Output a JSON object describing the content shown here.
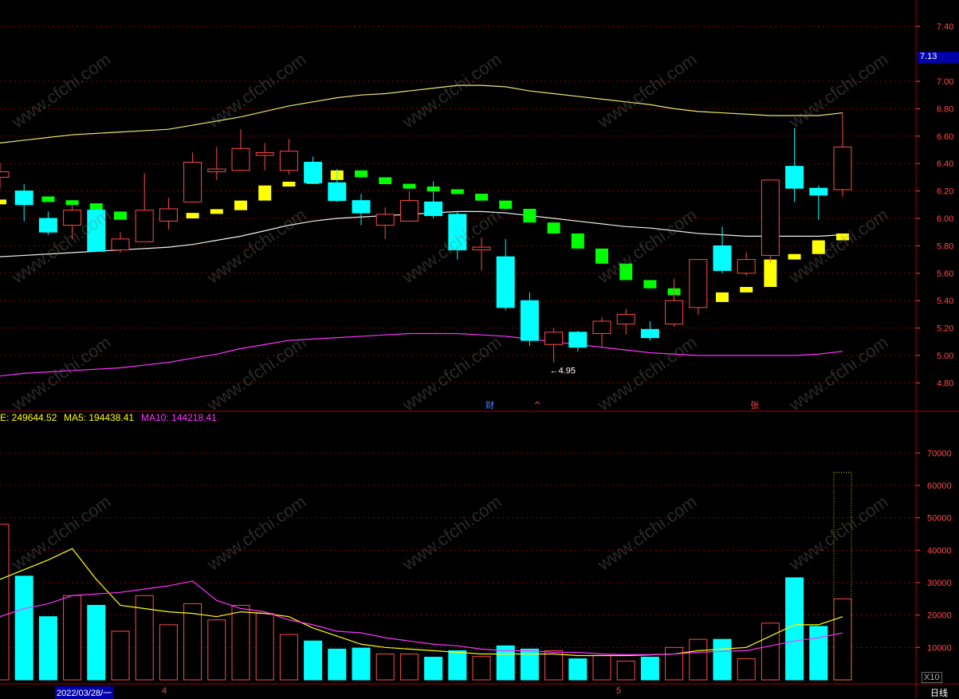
{
  "chart_data": [
    {
      "type": "candlestick",
      "price_axis": {
        "ticks": [
          "4.80",
          "5.00",
          "5.20",
          "5.40",
          "5.60",
          "5.80",
          "6.00",
          "6.20",
          "6.40",
          "6.60",
          "6.80",
          "7.00",
          "7.40"
        ],
        "current_price": "7.13"
      },
      "ylim": [
        4.6,
        7.6
      ],
      "low_marker": "4.95",
      "event_markers": [
        "财",
        "^",
        "张"
      ],
      "candles": [
        {
          "o": 6.3,
          "c": 6.34,
          "h": 6.4,
          "l": 6.22
        },
        {
          "o": 6.2,
          "c": 6.1,
          "h": 6.25,
          "l": 5.98
        },
        {
          "o": 6.0,
          "c": 5.9,
          "h": 6.05,
          "l": 5.88
        },
        {
          "o": 5.95,
          "c": 6.06,
          "h": 6.1,
          "l": 5.85
        },
        {
          "o": 6.06,
          "c": 5.76,
          "h": 6.08,
          "l": 5.76
        },
        {
          "o": 5.77,
          "c": 5.85,
          "h": 5.9,
          "l": 5.75
        },
        {
          "o": 5.83,
          "c": 6.06,
          "h": 6.33,
          "l": 5.83
        },
        {
          "o": 5.98,
          "c": 6.07,
          "h": 6.15,
          "l": 5.92
        },
        {
          "o": 6.12,
          "c": 6.41,
          "h": 6.48,
          "l": 6.12
        },
        {
          "o": 6.34,
          "c": 6.36,
          "h": 6.52,
          "l": 6.28
        },
        {
          "o": 6.35,
          "c": 6.51,
          "h": 6.65,
          "l": 6.35
        },
        {
          "o": 6.46,
          "c": 6.48,
          "h": 6.55,
          "l": 6.35
        },
        {
          "o": 6.35,
          "c": 6.49,
          "h": 6.58,
          "l": 6.32
        },
        {
          "o": 6.41,
          "c": 6.26,
          "h": 6.45,
          "l": 6.25
        },
        {
          "o": 6.26,
          "c": 6.13,
          "h": 6.36,
          "l": 6.12
        },
        {
          "o": 6.13,
          "c": 6.04,
          "h": 6.18,
          "l": 5.95
        },
        {
          "o": 5.95,
          "c": 6.03,
          "h": 6.08,
          "l": 5.85
        },
        {
          "o": 5.98,
          "c": 6.13,
          "h": 6.2,
          "l": 5.98
        },
        {
          "o": 6.12,
          "c": 6.02,
          "h": 6.27,
          "l": 6.0
        },
        {
          "o": 6.03,
          "c": 5.77,
          "h": 6.05,
          "l": 5.7
        },
        {
          "o": 5.77,
          "c": 5.79,
          "h": 5.86,
          "l": 5.62
        },
        {
          "o": 5.72,
          "c": 5.35,
          "h": 5.85,
          "l": 5.33
        },
        {
          "o": 5.4,
          "c": 5.11,
          "h": 5.46,
          "l": 5.07
        },
        {
          "o": 5.08,
          "c": 5.17,
          "h": 5.2,
          "l": 4.95
        },
        {
          "o": 5.17,
          "c": 5.06,
          "h": 5.18,
          "l": 5.03
        },
        {
          "o": 5.16,
          "c": 5.25,
          "h": 5.28,
          "l": 5.06
        },
        {
          "o": 5.23,
          "c": 5.3,
          "h": 5.34,
          "l": 5.15
        },
        {
          "o": 5.19,
          "c": 5.13,
          "h": 5.25,
          "l": 5.11
        },
        {
          "o": 5.23,
          "c": 5.4,
          "h": 5.56,
          "l": 5.21
        },
        {
          "o": 5.35,
          "c": 5.7,
          "h": 5.7,
          "l": 5.3
        },
        {
          "o": 5.8,
          "c": 5.62,
          "h": 5.94,
          "l": 5.6
        },
        {
          "o": 5.6,
          "c": 5.7,
          "h": 5.75,
          "l": 5.58
        },
        {
          "o": 5.73,
          "c": 6.28,
          "h": 6.28,
          "l": 5.68
        },
        {
          "o": 6.38,
          "c": 6.22,
          "h": 6.66,
          "l": 6.12
        },
        {
          "o": 6.22,
          "c": 6.17,
          "h": 6.24,
          "l": 5.99
        },
        {
          "o": 6.21,
          "c": 6.52,
          "h": 6.77,
          "l": 6.16
        }
      ],
      "ma5": [
        6.12,
        6.16,
        6.12,
        6.11,
        6.05,
        5.99,
        6.03,
        6.0,
        6.04,
        6.06,
        6.13,
        6.24,
        6.26,
        6.28,
        6.35,
        6.3,
        6.25,
        6.22,
        6.21,
        6.18,
        6.13,
        6.07,
        5.97,
        5.89,
        5.78,
        5.67,
        5.55,
        5.49,
        5.44,
        5.39,
        5.46,
        5.5,
        5.7,
        5.74,
        5.84,
        5.89
      ],
      "ma5_style": "blocks: green when falling, yellow when rising",
      "upper_band": [
        6.55,
        6.57,
        6.59,
        6.61,
        6.62,
        6.63,
        6.64,
        6.65,
        6.68,
        6.71,
        6.74,
        6.78,
        6.82,
        6.85,
        6.88,
        6.9,
        6.91,
        6.93,
        6.95,
        6.97,
        6.97,
        6.96,
        6.93,
        6.91,
        6.89,
        6.87,
        6.85,
        6.83,
        6.8,
        6.78,
        6.77,
        6.76,
        6.75,
        6.75,
        6.75,
        6.77
      ],
      "mid_band": [
        5.72,
        5.73,
        5.74,
        5.75,
        5.76,
        5.77,
        5.78,
        5.79,
        5.81,
        5.84,
        5.87,
        5.91,
        5.95,
        5.98,
        6.0,
        6.01,
        6.02,
        6.03,
        6.04,
        6.05,
        6.05,
        6.04,
        6.02,
        6.0,
        5.98,
        5.96,
        5.94,
        5.93,
        5.91,
        5.89,
        5.88,
        5.87,
        5.87,
        5.87,
        5.87,
        5.88
      ],
      "lower_band": [
        4.85,
        4.87,
        4.88,
        4.89,
        4.9,
        4.91,
        4.93,
        4.95,
        4.98,
        5.01,
        5.05,
        5.08,
        5.11,
        5.12,
        5.13,
        5.14,
        5.15,
        5.16,
        5.16,
        5.16,
        5.15,
        5.14,
        5.12,
        5.1,
        5.08,
        5.06,
        5.04,
        5.02,
        5.01,
        5.0,
        5.0,
        5.0,
        5.0,
        5.0,
        5.01,
        5.03
      ]
    },
    {
      "type": "bar",
      "title": "E: 249644.52",
      "ma5_label": "MA5: 194438.41",
      "ma10_label": "MA10: 144218.41",
      "y_ticks": [
        "10000",
        "20000",
        "30000",
        "40000",
        "50000",
        "60000",
        "70000"
      ],
      "ylim": [
        0,
        80000
      ],
      "scale_label": "X10",
      "volumes": [
        48000,
        32000,
        19500,
        26000,
        23000,
        15000,
        26000,
        17000,
        23500,
        18500,
        23000,
        20500,
        14000,
        12000,
        9500,
        9800,
        8000,
        8000,
        7000,
        9000,
        7200,
        10500,
        9500,
        9000,
        6500,
        7500,
        5800,
        7000,
        10000,
        12500,
        12500,
        6500,
        17500,
        31500,
        16500,
        25000
      ],
      "peak_bar": 64000,
      "ma5": [
        31000,
        34000,
        37000,
        40500,
        31000,
        23000,
        22000,
        21000,
        20500,
        19500,
        21000,
        20500,
        19500,
        16000,
        13500,
        11000,
        10000,
        9500,
        9000,
        8500,
        8000,
        8000,
        8000,
        8000,
        7500,
        7500,
        7500,
        7700,
        8000,
        9000,
        9500,
        10000,
        13500,
        17000,
        17000,
        19500
      ],
      "ma10": [
        19500,
        22000,
        23500,
        26000,
        26500,
        27000,
        28000,
        29000,
        30500,
        24500,
        22000,
        21000,
        18500,
        17000,
        15000,
        14500,
        13000,
        12000,
        11000,
        10500,
        9500,
        9000,
        9000,
        8500,
        8500,
        8000,
        7800,
        7800,
        8000,
        8500,
        8800,
        9000,
        10500,
        12000,
        13000,
        14500
      ],
      "date_label": "2022/03/28/一",
      "month_labels": [
        "4",
        "5"
      ],
      "period_label": "日线"
    }
  ],
  "watermark": "www.cfchi.com",
  "colors": {
    "up": "#ff4a4a",
    "down": "#00ffff",
    "ma_green": "#00ff00",
    "ma_yellow": "#ffff00",
    "upper": "#e8e870",
    "mid": "#f0f0f0",
    "lower": "#ff33ff",
    "grid": "#8a0000"
  }
}
